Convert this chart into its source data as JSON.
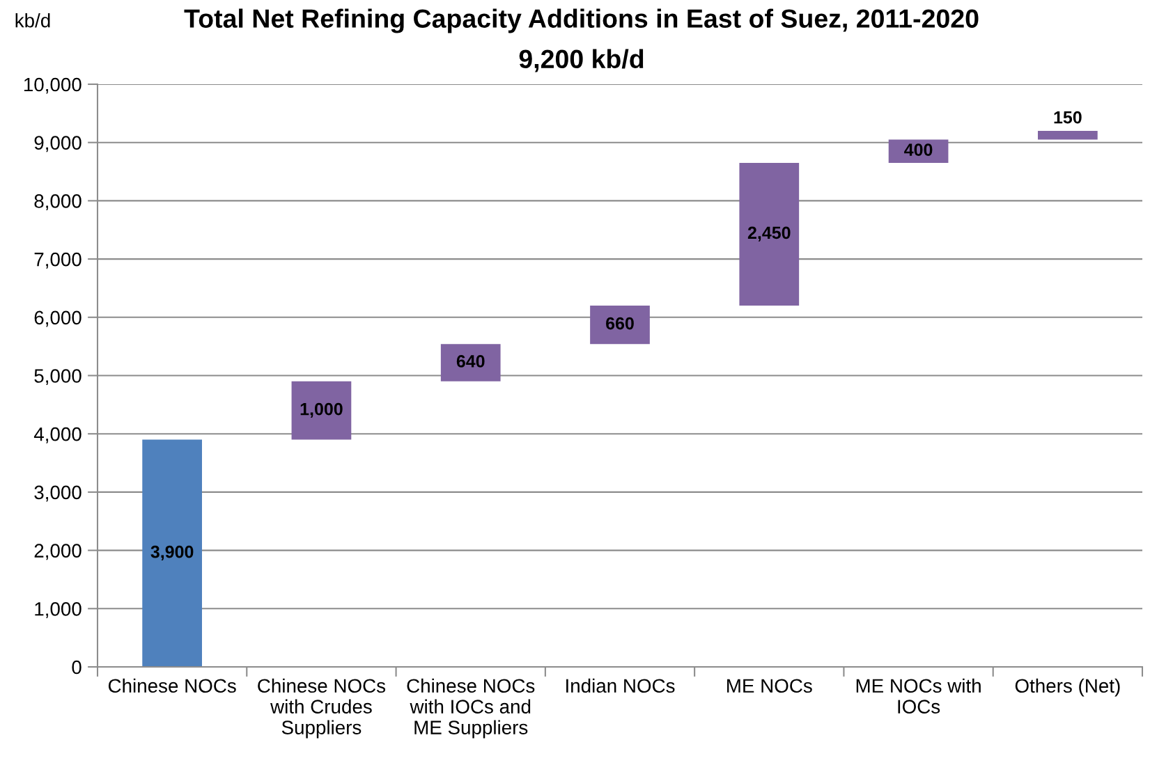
{
  "chart_data": {
    "type": "bar",
    "title": "Total Net Refining Capacity Additions in East of Suez, 2011-2020",
    "subtitle": "9,200 kb/d",
    "ylabel": "kb/d",
    "categories": [
      "Chinese NOCs",
      "Chinese NOCs with Crudes Suppliers",
      "Chinese NOCs with IOCs and ME Suppliers",
      "Indian NOCs",
      "ME NOCs",
      "ME NOCs with IOCs",
      "Others (Net)"
    ],
    "values": [
      3900,
      1000,
      640,
      660,
      2450,
      400,
      150
    ],
    "base": [
      0,
      3900,
      4900,
      5540,
      6200,
      8650,
      9050
    ],
    "colors": [
      "#4f81bd",
      "#8064a2",
      "#8064a2",
      "#8064a2",
      "#8064a2",
      "#8064a2",
      "#8064a2"
    ],
    "value_labels": [
      "3,900",
      "1,000",
      "640",
      "660",
      "2,450",
      "400",
      "150"
    ],
    "ylim": [
      0,
      10000
    ],
    "yticks": [
      0,
      {
        "value": 1000,
        "label": "1,000"
      },
      {
        "value": 2000,
        "label": "2,000"
      },
      {
        "value": 3000,
        "label": "3,000"
      },
      {
        "value": 4000,
        "label": "4,000"
      },
      {
        "value": 5000,
        "label": "5,000"
      },
      {
        "value": 6000,
        "label": "6,000"
      },
      {
        "value": 7000,
        "label": "7,000"
      },
      {
        "value": 8000,
        "label": "8,000"
      },
      {
        "value": 9000,
        "label": "9,000"
      },
      {
        "value": 10000,
        "label": "10,000"
      }
    ],
    "grid": "y"
  }
}
